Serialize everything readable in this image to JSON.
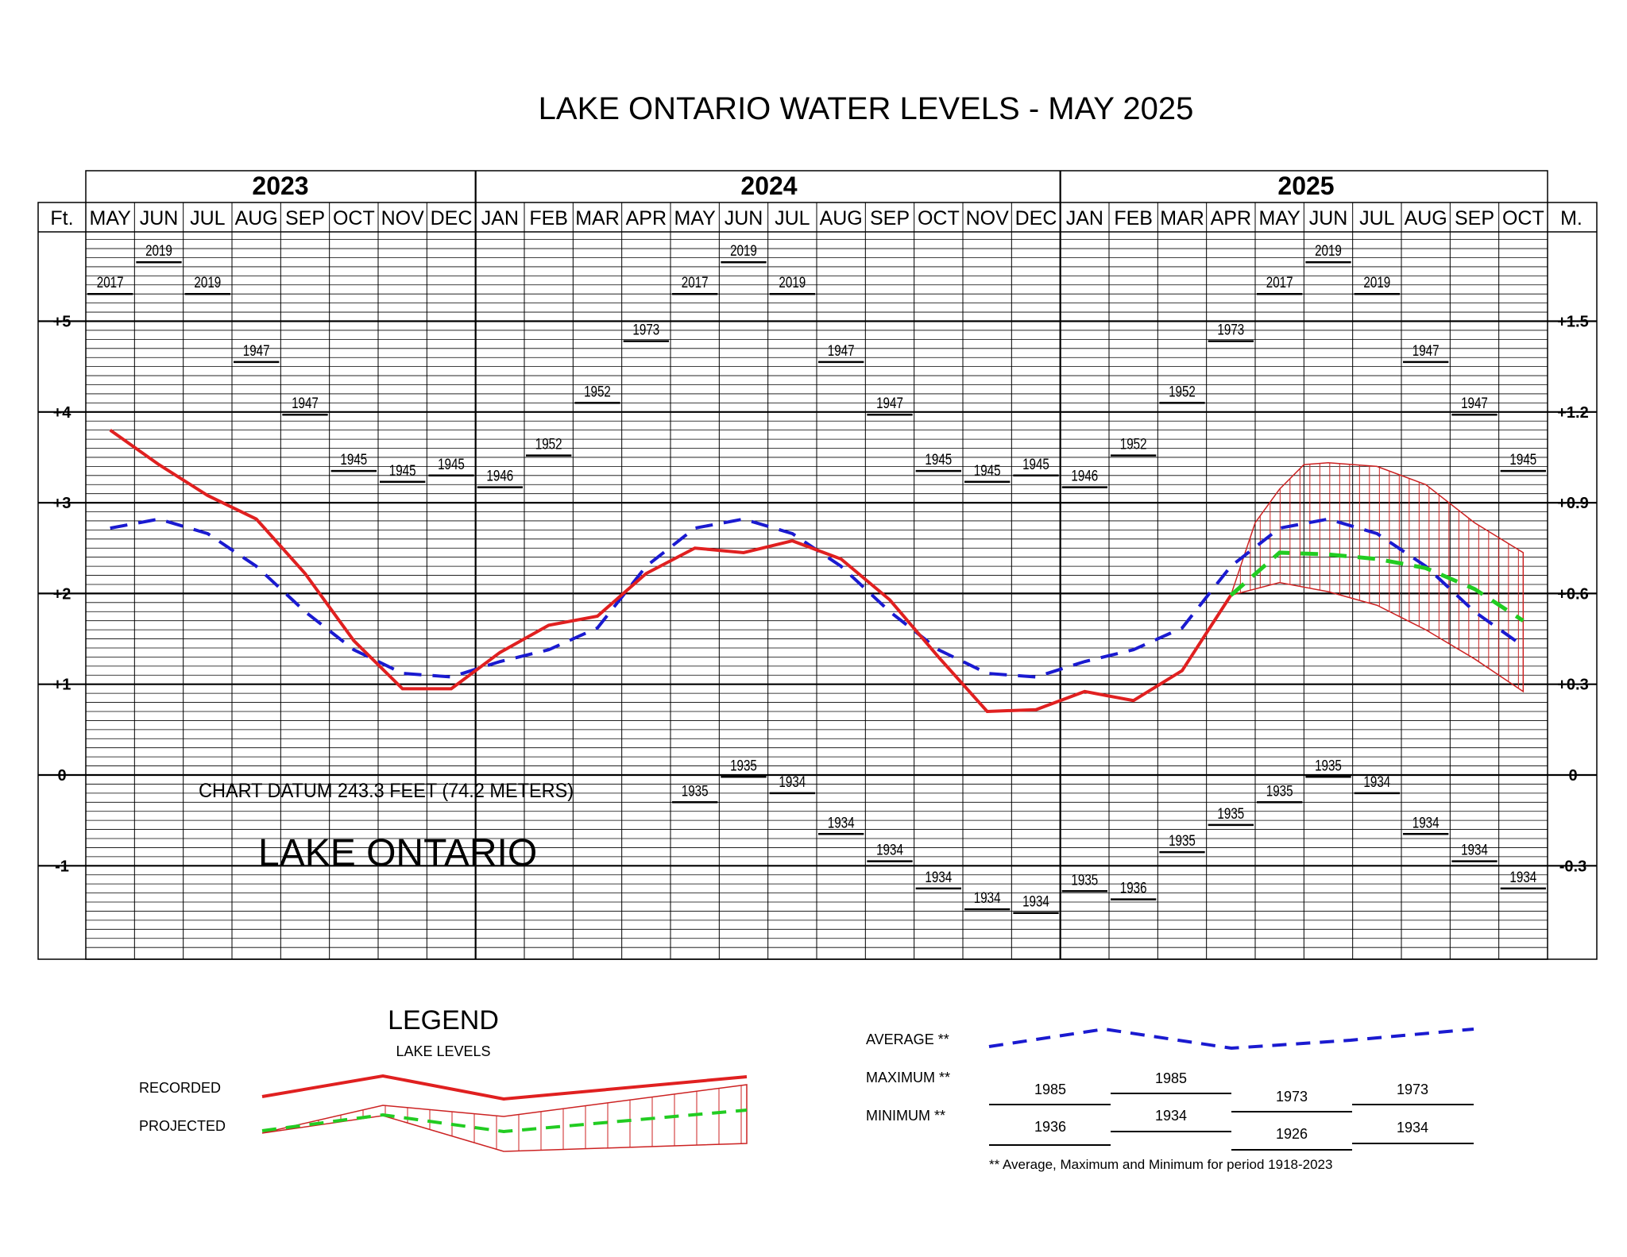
{
  "title": "LAKE ONTARIO WATER LEVELS - MAY 2025",
  "year_headers": [
    "2023",
    "2024",
    "2025"
  ],
  "unit_left": "Ft.",
  "unit_right": "M.",
  "chart_data": {
    "type": "line",
    "title": "LAKE ONTARIO WATER LEVELS - MAY 2025",
    "x": [
      "MAY",
      "JUN",
      "JUL",
      "AUG",
      "SEP",
      "OCT",
      "NOV",
      "DEC",
      "JAN",
      "FEB",
      "MAR",
      "APR",
      "MAY",
      "JUN",
      "JUL",
      "AUG",
      "SEP",
      "OCT",
      "NOV",
      "DEC",
      "JAN",
      "FEB",
      "MAR",
      "APR",
      "MAY",
      "JUN",
      "JUL",
      "AUG",
      "SEP",
      "OCT"
    ],
    "ylim": [
      -2.0,
      6.0
    ],
    "y_ticks_ft": [
      {
        "v": 5,
        "label": "+5"
      },
      {
        "v": 4,
        "label": "+4"
      },
      {
        "v": 3,
        "label": "+3"
      },
      {
        "v": 2,
        "label": "+2"
      },
      {
        "v": 1,
        "label": "+1"
      },
      {
        "v": 0,
        "label": "0"
      },
      {
        "v": -1,
        "label": "-1"
      }
    ],
    "y_ticks_m": [
      {
        "v": 5,
        "label": "+1.5"
      },
      {
        "v": 4,
        "label": "+1.2"
      },
      {
        "v": 3,
        "label": "+0.9"
      },
      {
        "v": 2,
        "label": "+0.6"
      },
      {
        "v": 1,
        "label": "+0.3"
      },
      {
        "v": 0,
        "label": "0"
      },
      {
        "v": -1,
        "label": "-0.3"
      }
    ],
    "grid": true,
    "average": [
      2.72,
      2.82,
      2.66,
      2.3,
      1.8,
      1.38,
      1.12,
      1.08,
      1.25,
      1.38,
      1.62,
      2.3,
      2.72,
      2.82,
      2.66,
      2.3,
      1.8,
      1.38,
      1.12,
      1.08,
      1.25,
      1.38,
      1.62,
      2.3,
      2.72,
      2.82,
      2.66,
      2.3,
      1.8,
      1.42
    ],
    "recorded": [
      3.8,
      3.42,
      3.08,
      2.82,
      2.22,
      1.48,
      0.95,
      0.95,
      1.35,
      1.65,
      1.75,
      2.22,
      2.5,
      2.45,
      2.58,
      2.38,
      1.93,
      1.3,
      0.7,
      0.72,
      0.92,
      0.82,
      1.15,
      1.98
    ],
    "projected_mid": [
      {
        "i": 23,
        "v": 1.98
      },
      {
        "i": 24,
        "v": 2.45
      },
      {
        "i": 25,
        "v": 2.43
      },
      {
        "i": 26,
        "v": 2.38
      },
      {
        "i": 27,
        "v": 2.28
      },
      {
        "i": 28,
        "v": 2.05
      },
      {
        "i": 29,
        "v": 1.7
      }
    ],
    "projected_max": [
      {
        "i": 23,
        "v": 1.98
      },
      {
        "i": 23.5,
        "v": 2.78
      },
      {
        "i": 24,
        "v": 3.15
      },
      {
        "i": 24.5,
        "v": 3.42
      },
      {
        "i": 25,
        "v": 3.44
      },
      {
        "i": 26,
        "v": 3.4
      },
      {
        "i": 27,
        "v": 3.2
      },
      {
        "i": 28,
        "v": 2.78
      },
      {
        "i": 29,
        "v": 2.45
      }
    ],
    "projected_min": [
      {
        "i": 23,
        "v": 1.98
      },
      {
        "i": 24,
        "v": 2.12
      },
      {
        "i": 25,
        "v": 2.02
      },
      {
        "i": 26,
        "v": 1.87
      },
      {
        "i": 27,
        "v": 1.6
      },
      {
        "i": 28,
        "v": 1.28
      },
      {
        "i": 29,
        "v": 0.92
      }
    ],
    "maximum_records": [
      {
        "v": 5.3,
        "year": "2017"
      },
      {
        "v": 5.65,
        "year": "2019"
      },
      {
        "v": 5.3,
        "year": "2019"
      },
      {
        "v": 4.55,
        "year": "1947"
      },
      {
        "v": 3.97,
        "year": "1947"
      },
      {
        "v": 3.35,
        "year": "1945"
      },
      {
        "v": 3.23,
        "year": "1945"
      },
      {
        "v": 3.3,
        "year": "1945"
      },
      {
        "v": 3.17,
        "year": "1946"
      },
      {
        "v": 3.52,
        "year": "1952"
      },
      {
        "v": 4.1,
        "year": "1952"
      },
      {
        "v": 4.78,
        "year": "1973"
      },
      {
        "v": 5.3,
        "year": "2017"
      },
      {
        "v": 5.65,
        "year": "2019"
      },
      {
        "v": 5.3,
        "year": "2019"
      },
      {
        "v": 4.55,
        "year": "1947"
      },
      {
        "v": 3.97,
        "year": "1947"
      },
      {
        "v": 3.35,
        "year": "1945"
      },
      {
        "v": 3.23,
        "year": "1945"
      },
      {
        "v": 3.3,
        "year": "1945"
      },
      {
        "v": 3.17,
        "year": "1946"
      },
      {
        "v": 3.52,
        "year": "1952"
      },
      {
        "v": 4.1,
        "year": "1952"
      },
      {
        "v": 4.78,
        "year": "1973"
      },
      {
        "v": 5.3,
        "year": "2017"
      },
      {
        "v": 5.65,
        "year": "2019"
      },
      {
        "v": 5.3,
        "year": "2019"
      },
      {
        "v": 4.55,
        "year": "1947"
      },
      {
        "v": 3.97,
        "year": "1947"
      },
      {
        "v": 3.35,
        "year": "1945"
      }
    ],
    "minimum_records": [
      null,
      null,
      null,
      null,
      null,
      null,
      null,
      null,
      null,
      null,
      null,
      null,
      {
        "v": -0.3,
        "year": "1935"
      },
      {
        "v": -0.02,
        "year": "1935"
      },
      {
        "v": -0.2,
        "year": "1934"
      },
      {
        "v": -0.65,
        "year": "1934"
      },
      {
        "v": -0.95,
        "year": "1934"
      },
      {
        "v": -1.25,
        "year": "1934"
      },
      {
        "v": -1.48,
        "year": "1934"
      },
      {
        "v": -1.52,
        "year": "1934"
      },
      {
        "v": -1.28,
        "year": "1935"
      },
      {
        "v": -1.37,
        "year": "1936"
      },
      {
        "v": -0.85,
        "year": "1935"
      },
      {
        "v": -0.55,
        "year": "1935"
      },
      {
        "v": -0.3,
        "year": "1935"
      },
      {
        "v": -0.02,
        "year": "1935"
      },
      {
        "v": -0.2,
        "year": "1934"
      },
      {
        "v": -0.65,
        "year": "1934"
      },
      {
        "v": -0.95,
        "year": "1934"
      },
      {
        "v": -1.25,
        "year": "1934"
      }
    ]
  },
  "datum_note": "CHART DATUM  243.3 FEET (74.2 METERS)",
  "lake_label": "LAKE ONTARIO",
  "legend": {
    "title": "LEGEND",
    "subtitle": "LAKE LEVELS",
    "recorded": "RECORDED",
    "projected": "PROJECTED",
    "average": "AVERAGE **",
    "maximum": "MAXIMUM **",
    "minimum": "MINIMUM **",
    "max_years": [
      "1985",
      "1985",
      "1973",
      "1973"
    ],
    "min_years": [
      "1936",
      "1934",
      "1926",
      "1934"
    ],
    "footnote": "** Average, Maximum and Minimum for period 1918-2023"
  },
  "colors": {
    "recorded": "#e02020",
    "average": "#1a1ad0",
    "projected": "#22cc22",
    "band": "#cc2222"
  }
}
